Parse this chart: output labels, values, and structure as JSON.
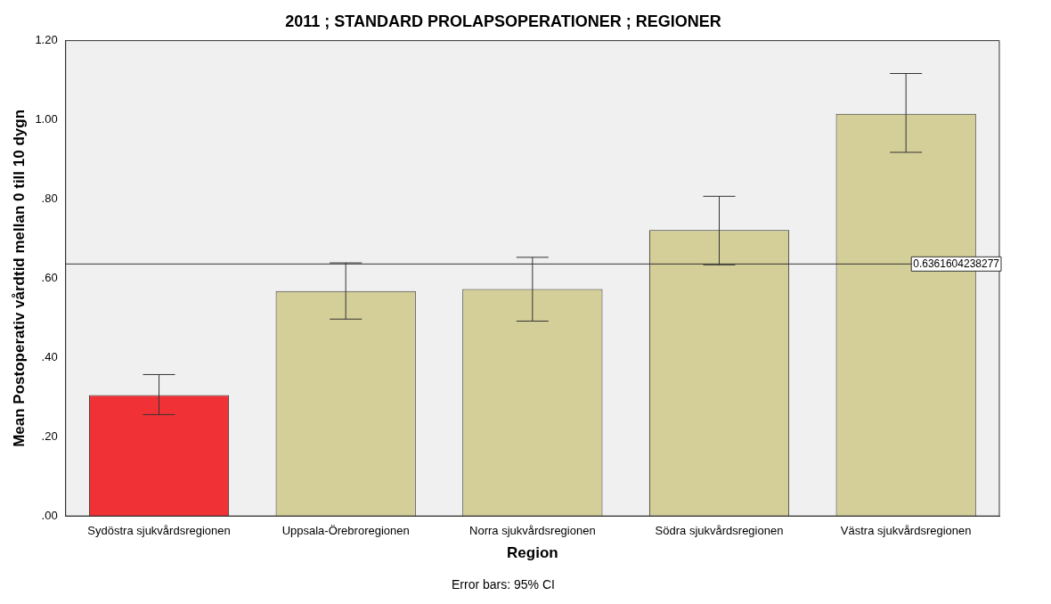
{
  "chart_data": {
    "type": "bar",
    "title": "2011 ; STANDARD PROLAPSOPERATIONER ; REGIONER",
    "xlabel": "Region",
    "ylabel": "Mean Postoperativ vårdtid mellan 0 till 10 dygn",
    "categories": [
      "Sydöstra sjukvårdsregionen",
      "Uppsala-Örebroregionen",
      "Norra sjukvårdsregionen",
      "Södra sjukvårdsregionen",
      "Västra sjukvårdsregionen"
    ],
    "values": [
      0.305,
      0.568,
      0.573,
      0.722,
      1.015
    ],
    "colors": [
      "#f03237",
      "#d4cf98",
      "#d4cf98",
      "#d4cf98",
      "#d4cf98"
    ],
    "errors": [
      [
        0.256,
        0.357
      ],
      [
        0.497,
        0.639
      ],
      [
        0.492,
        0.653
      ],
      [
        0.634,
        0.807
      ],
      [
        0.918,
        1.117
      ]
    ],
    "ylim": [
      0,
      1.2
    ],
    "yticks": [
      {
        "value": 0,
        "label": ".00"
      },
      {
        "value": 0.2,
        "label": ".20"
      },
      {
        "value": 0.4,
        "label": ".40"
      },
      {
        "value": 0.6,
        "label": ".60"
      },
      {
        "value": 0.8,
        "label": ".80"
      },
      {
        "value": 1,
        "label": "1.00"
      },
      {
        "value": 1.2,
        "label": "1.20"
      }
    ],
    "ref_lines": [
      {
        "axis": "y",
        "value": 0.6361604238277,
        "label": "0.6361604238277"
      }
    ],
    "annotations": [
      "Error bars: 95% CI"
    ],
    "grid": false,
    "legend": false
  }
}
